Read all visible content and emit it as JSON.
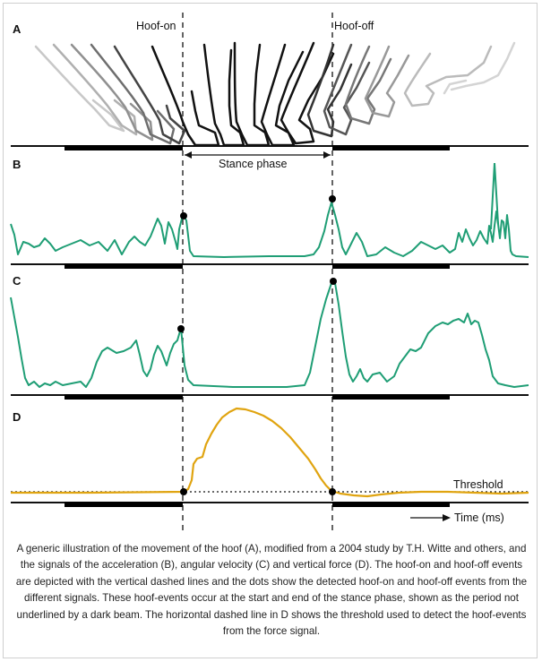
{
  "panels": {
    "a": {
      "letter": "A"
    },
    "b": {
      "letter": "B"
    },
    "c": {
      "letter": "C"
    },
    "d": {
      "letter": "D"
    }
  },
  "labels": {
    "hoof_on": "Hoof-on",
    "hoof_off": "Hoof-off",
    "stance_phase": "Stance phase",
    "threshold": "Threshold",
    "time": "Time (ms)"
  },
  "colors": {
    "signal_green": "#1f9e75",
    "force_orange": "#e0a410",
    "beam": "#000000"
  },
  "caption": "A generic illustration of the movement of the hoof (A), modified from a 2004 study by T.H. Witte and others, and the signals of the acceleration (B), angular velocity (C) and vertical force (D). The hoof-on and hoof-off events are depicted with the vertical dashed lines and the dots show the detected hoof-on and hoof-off events from the different signals. These hoof-events occur at the start and end of the stance phase, shown as the period not underlined by a dark beam. The horizontal dashed line in D shows the threshold used to detect the hoof-events from the force signal."
}
